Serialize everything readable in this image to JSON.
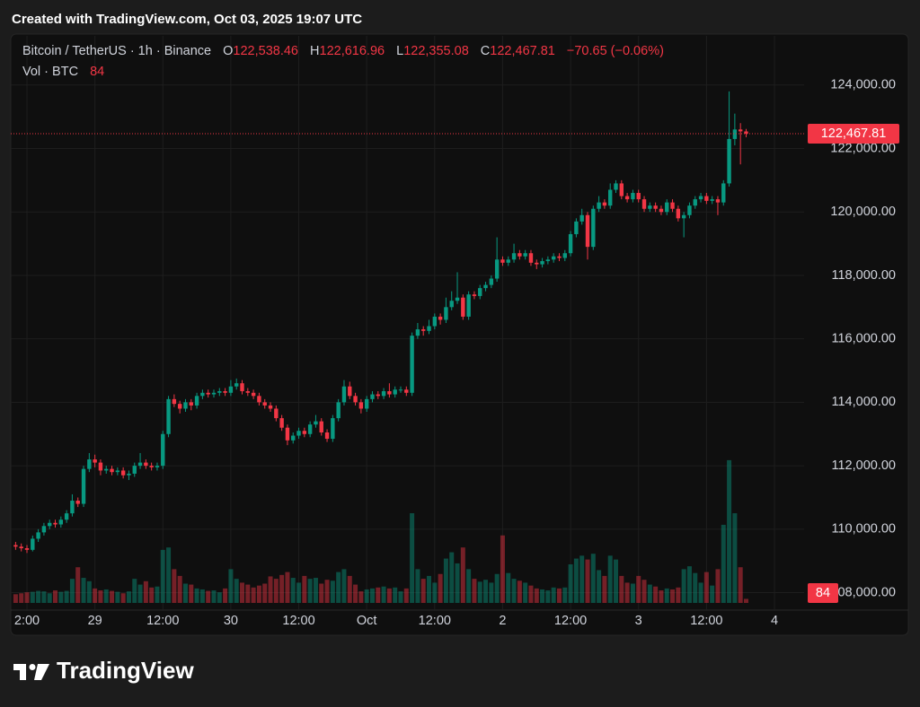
{
  "header": {
    "text": "Created with TradingView.com, Oct 03, 2025 19:07 UTC"
  },
  "footer": {
    "logo_text": "TradingView"
  },
  "chart_data": {
    "type": "candlestick",
    "title": "Bitcoin / TetherUS · 1h · Binance",
    "legend": {
      "open_key": "O",
      "open": "122,538.46",
      "high_key": "H",
      "high": "122,616.96",
      "low_key": "L",
      "low": "122,355.08",
      "close_key": "C",
      "close": "122,467.81",
      "change": "−70.65 (−0.06%)"
    },
    "volume_title": "Vol · BTC",
    "volume_label": "84",
    "last_price_label": "122,467.81",
    "up_color": "#089981",
    "down_color": "#f23645",
    "grid": true,
    "categories": [
      null,
      null,
      "2:00",
      null,
      null,
      null,
      null,
      null,
      null,
      null,
      null,
      null,
      null,
      null,
      "29",
      null,
      null,
      null,
      null,
      null,
      null,
      null,
      null,
      null,
      null,
      null,
      "12:00",
      null,
      null,
      null,
      null,
      null,
      null,
      null,
      null,
      null,
      null,
      null,
      "30",
      null,
      null,
      null,
      null,
      null,
      null,
      null,
      null,
      null,
      null,
      null,
      "12:00",
      null,
      null,
      null,
      null,
      null,
      null,
      null,
      null,
      null,
      null,
      null,
      "Oct",
      null,
      null,
      null,
      null,
      null,
      null,
      null,
      null,
      null,
      null,
      null,
      "12:00",
      null,
      null,
      null,
      null,
      null,
      null,
      null,
      null,
      null,
      null,
      null,
      "2",
      null,
      null,
      null,
      null,
      null,
      null,
      null,
      null,
      null,
      null,
      null,
      "12:00",
      null,
      null,
      null,
      null,
      null,
      null,
      null,
      null,
      null,
      null,
      null,
      "3",
      null,
      null,
      null,
      null,
      null,
      null,
      null,
      null,
      null,
      null,
      null,
      "12:00",
      null,
      null,
      null,
      null,
      null,
      null,
      null,
      null,
      null,
      null,
      null,
      "4"
    ],
    "open": [
      109500,
      109450,
      109400,
      109350,
      109700,
      109900,
      110100,
      110200,
      110150,
      110300,
      110500,
      110900,
      110800,
      111900,
      112200,
      112100,
      111850,
      111900,
      111800,
      111850,
      111700,
      111750,
      112000,
      112100,
      112000,
      111950,
      112000,
      113000,
      114100,
      113950,
      113800,
      114000,
      113900,
      114200,
      114300,
      114250,
      114300,
      114350,
      114300,
      114500,
      114600,
      114350,
      114300,
      114200,
      114000,
      113900,
      113800,
      113500,
      113200,
      112800,
      112950,
      113100,
      113000,
      113300,
      113400,
      113050,
      112850,
      113500,
      114000,
      114500,
      114200,
      114000,
      113800,
      114100,
      114250,
      114200,
      114350,
      114250,
      114400,
      114400,
      114300,
      116100,
      116300,
      116250,
      116400,
      116700,
      116600,
      117000,
      117200,
      117300,
      116700,
      117400,
      117350,
      117600,
      117700,
      117900,
      118500,
      118400,
      118500,
      118700,
      118600,
      118700,
      118400,
      118350,
      118450,
      118500,
      118600,
      118550,
      118700,
      119300,
      119700,
      119900,
      118900,
      120100,
      120300,
      120200,
      120700,
      120900,
      120500,
      120400,
      120600,
      120400,
      120100,
      120200,
      120100,
      120000,
      120300,
      120100,
      119800,
      119900,
      120200,
      120400,
      120500,
      120350,
      120400,
      120300,
      120900,
      122300,
      122600,
      122538.46,
      null,
      null,
      null,
      null,
      null
    ],
    "high": [
      109600,
      109550,
      109500,
      109800,
      110000,
      110200,
      110300,
      110300,
      110400,
      110600,
      111100,
      111000,
      112000,
      112400,
      112350,
      112200,
      112000,
      112000,
      111950,
      111950,
      111850,
      112100,
      112400,
      112200,
      112100,
      112100,
      113100,
      114200,
      114250,
      114050,
      114100,
      114100,
      114300,
      114400,
      114400,
      114400,
      114450,
      114450,
      114700,
      114750,
      114700,
      114450,
      114400,
      114300,
      114100,
      114000,
      113900,
      113600,
      113300,
      113050,
      113200,
      113200,
      113400,
      113600,
      113500,
      113150,
      113600,
      114100,
      114700,
      114650,
      114300,
      114100,
      114200,
      114350,
      114350,
      114450,
      114600,
      114500,
      114500,
      114500,
      116200,
      116500,
      116400,
      116600,
      116800,
      116800,
      117300,
      117500,
      118100,
      117400,
      117500,
      117500,
      117700,
      117800,
      118000,
      119200,
      118600,
      118600,
      119000,
      118800,
      118800,
      118800,
      118500,
      118550,
      118600,
      118700,
      118700,
      118800,
      119400,
      119800,
      120100,
      120000,
      120200,
      120500,
      120400,
      120900,
      121000,
      121000,
      120600,
      120700,
      120700,
      120500,
      120300,
      120300,
      120200,
      120400,
      120400,
      120200,
      120000,
      120300,
      120500,
      120600,
      120600,
      120500,
      120500,
      121000,
      123800,
      123100,
      122800,
      122616.96,
      null,
      null,
      null,
      null,
      null
    ],
    "low": [
      109350,
      109300,
      109250,
      109300,
      109600,
      109800,
      110000,
      110050,
      110050,
      110200,
      110400,
      110700,
      110700,
      111800,
      111950,
      111700,
      111750,
      111700,
      111700,
      111600,
      111550,
      111650,
      111900,
      111900,
      111850,
      111850,
      111900,
      112900,
      113850,
      113650,
      113700,
      113750,
      113800,
      114100,
      114150,
      114150,
      114200,
      114200,
      114200,
      114400,
      114250,
      114200,
      114100,
      113900,
      113800,
      113700,
      113400,
      113100,
      112650,
      112700,
      112850,
      112900,
      112900,
      113200,
      112950,
      112750,
      112750,
      113400,
      113900,
      114100,
      113900,
      113650,
      113700,
      114000,
      114100,
      114100,
      114150,
      114150,
      114300,
      114200,
      114200,
      116000,
      116100,
      116150,
      116300,
      116450,
      116500,
      116900,
      117100,
      116600,
      116600,
      117250,
      117250,
      117500,
      117600,
      117800,
      118300,
      118300,
      118400,
      118500,
      118500,
      118300,
      118200,
      118250,
      118350,
      118400,
      118450,
      118450,
      118600,
      119200,
      119600,
      118500,
      118800,
      120000,
      120100,
      120100,
      120600,
      120400,
      120300,
      120300,
      120300,
      120000,
      120000,
      120000,
      119900,
      119900,
      120000,
      119700,
      119200,
      119800,
      120100,
      120300,
      120250,
      120250,
      119900,
      120200,
      120800,
      122100,
      121500,
      122355.08,
      null,
      null,
      null,
      null,
      null
    ],
    "close": [
      109450,
      109400,
      109350,
      109700,
      109900,
      110100,
      110200,
      110150,
      110300,
      110500,
      110900,
      110800,
      111900,
      112200,
      112100,
      111850,
      111900,
      111800,
      111850,
      111700,
      111750,
      112000,
      112100,
      112000,
      111950,
      112000,
      113000,
      114100,
      113950,
      113800,
      114000,
      113900,
      114200,
      114300,
      114250,
      114300,
      114350,
      114300,
      114500,
      114600,
      114350,
      114300,
      114200,
      114000,
      113900,
      113800,
      113500,
      113200,
      112800,
      112950,
      113100,
      113000,
      113300,
      113400,
      113050,
      112850,
      113500,
      114000,
      114500,
      114200,
      114000,
      113800,
      114100,
      114250,
      114200,
      114350,
      114250,
      114400,
      114400,
      114300,
      116100,
      116300,
      116250,
      116400,
      116700,
      116600,
      117000,
      117200,
      117300,
      116700,
      117400,
      117350,
      117600,
      117700,
      117900,
      118500,
      118400,
      118500,
      118700,
      118600,
      118700,
      118400,
      118350,
      118450,
      118500,
      118600,
      118550,
      118700,
      119300,
      119700,
      119900,
      118900,
      120100,
      120300,
      120200,
      120700,
      120900,
      120500,
      120400,
      120600,
      120400,
      120100,
      120200,
      120100,
      120000,
      120300,
      120100,
      119800,
      119900,
      120200,
      120400,
      120500,
      120350,
      120400,
      120300,
      120900,
      122300,
      122600,
      122540,
      122467.81,
      null,
      null,
      null,
      null,
      null
    ],
    "volume": [
      180,
      200,
      220,
      230,
      250,
      240,
      200,
      260,
      230,
      250,
      500,
      740,
      520,
      450,
      300,
      260,
      280,
      250,
      230,
      200,
      240,
      500,
      380,
      450,
      320,
      340,
      1100,
      1150,
      700,
      560,
      400,
      380,
      300,
      280,
      250,
      260,
      220,
      300,
      700,
      500,
      420,
      380,
      320,
      360,
      400,
      550,
      500,
      580,
      640,
      520,
      420,
      560,
      500,
      520,
      400,
      480,
      460,
      640,
      700,
      560,
      380,
      240,
      280,
      300,
      320,
      340,
      300,
      320,
      240,
      300,
      1860,
      700,
      500,
      560,
      420,
      600,
      920,
      1050,
      820,
      1150,
      700,
      500,
      440,
      480,
      420,
      600,
      1400,
      620,
      500,
      460,
      420,
      360,
      300,
      280,
      260,
      320,
      300,
      320,
      800,
      920,
      980,
      900,
      1020,
      680,
      560,
      980,
      900,
      560,
      420,
      400,
      560,
      480,
      380,
      340,
      260,
      300,
      280,
      320,
      700,
      760,
      620,
      420,
      640,
      360,
      700,
      1620,
      2960,
      1860,
      740,
      84,
      null,
      null,
      null,
      null,
      null
    ],
    "ylim": [
      107450,
      125550
    ],
    "yticks": [
      {
        "value": 108000,
        "label": "108,000.00"
      },
      {
        "value": 110000,
        "label": "110,000.00"
      },
      {
        "value": 112000,
        "label": "112,000.00"
      },
      {
        "value": 114000,
        "label": "114,000.00"
      },
      {
        "value": 116000,
        "label": "116,000.00"
      },
      {
        "value": 118000,
        "label": "118,000.00"
      },
      {
        "value": 120000,
        "label": "120,000.00"
      },
      {
        "value": 122000,
        "label": "122,000.00"
      },
      {
        "value": 124000,
        "label": "124,000.00"
      }
    ],
    "volume_lim": [
      0,
      3200
    ]
  }
}
